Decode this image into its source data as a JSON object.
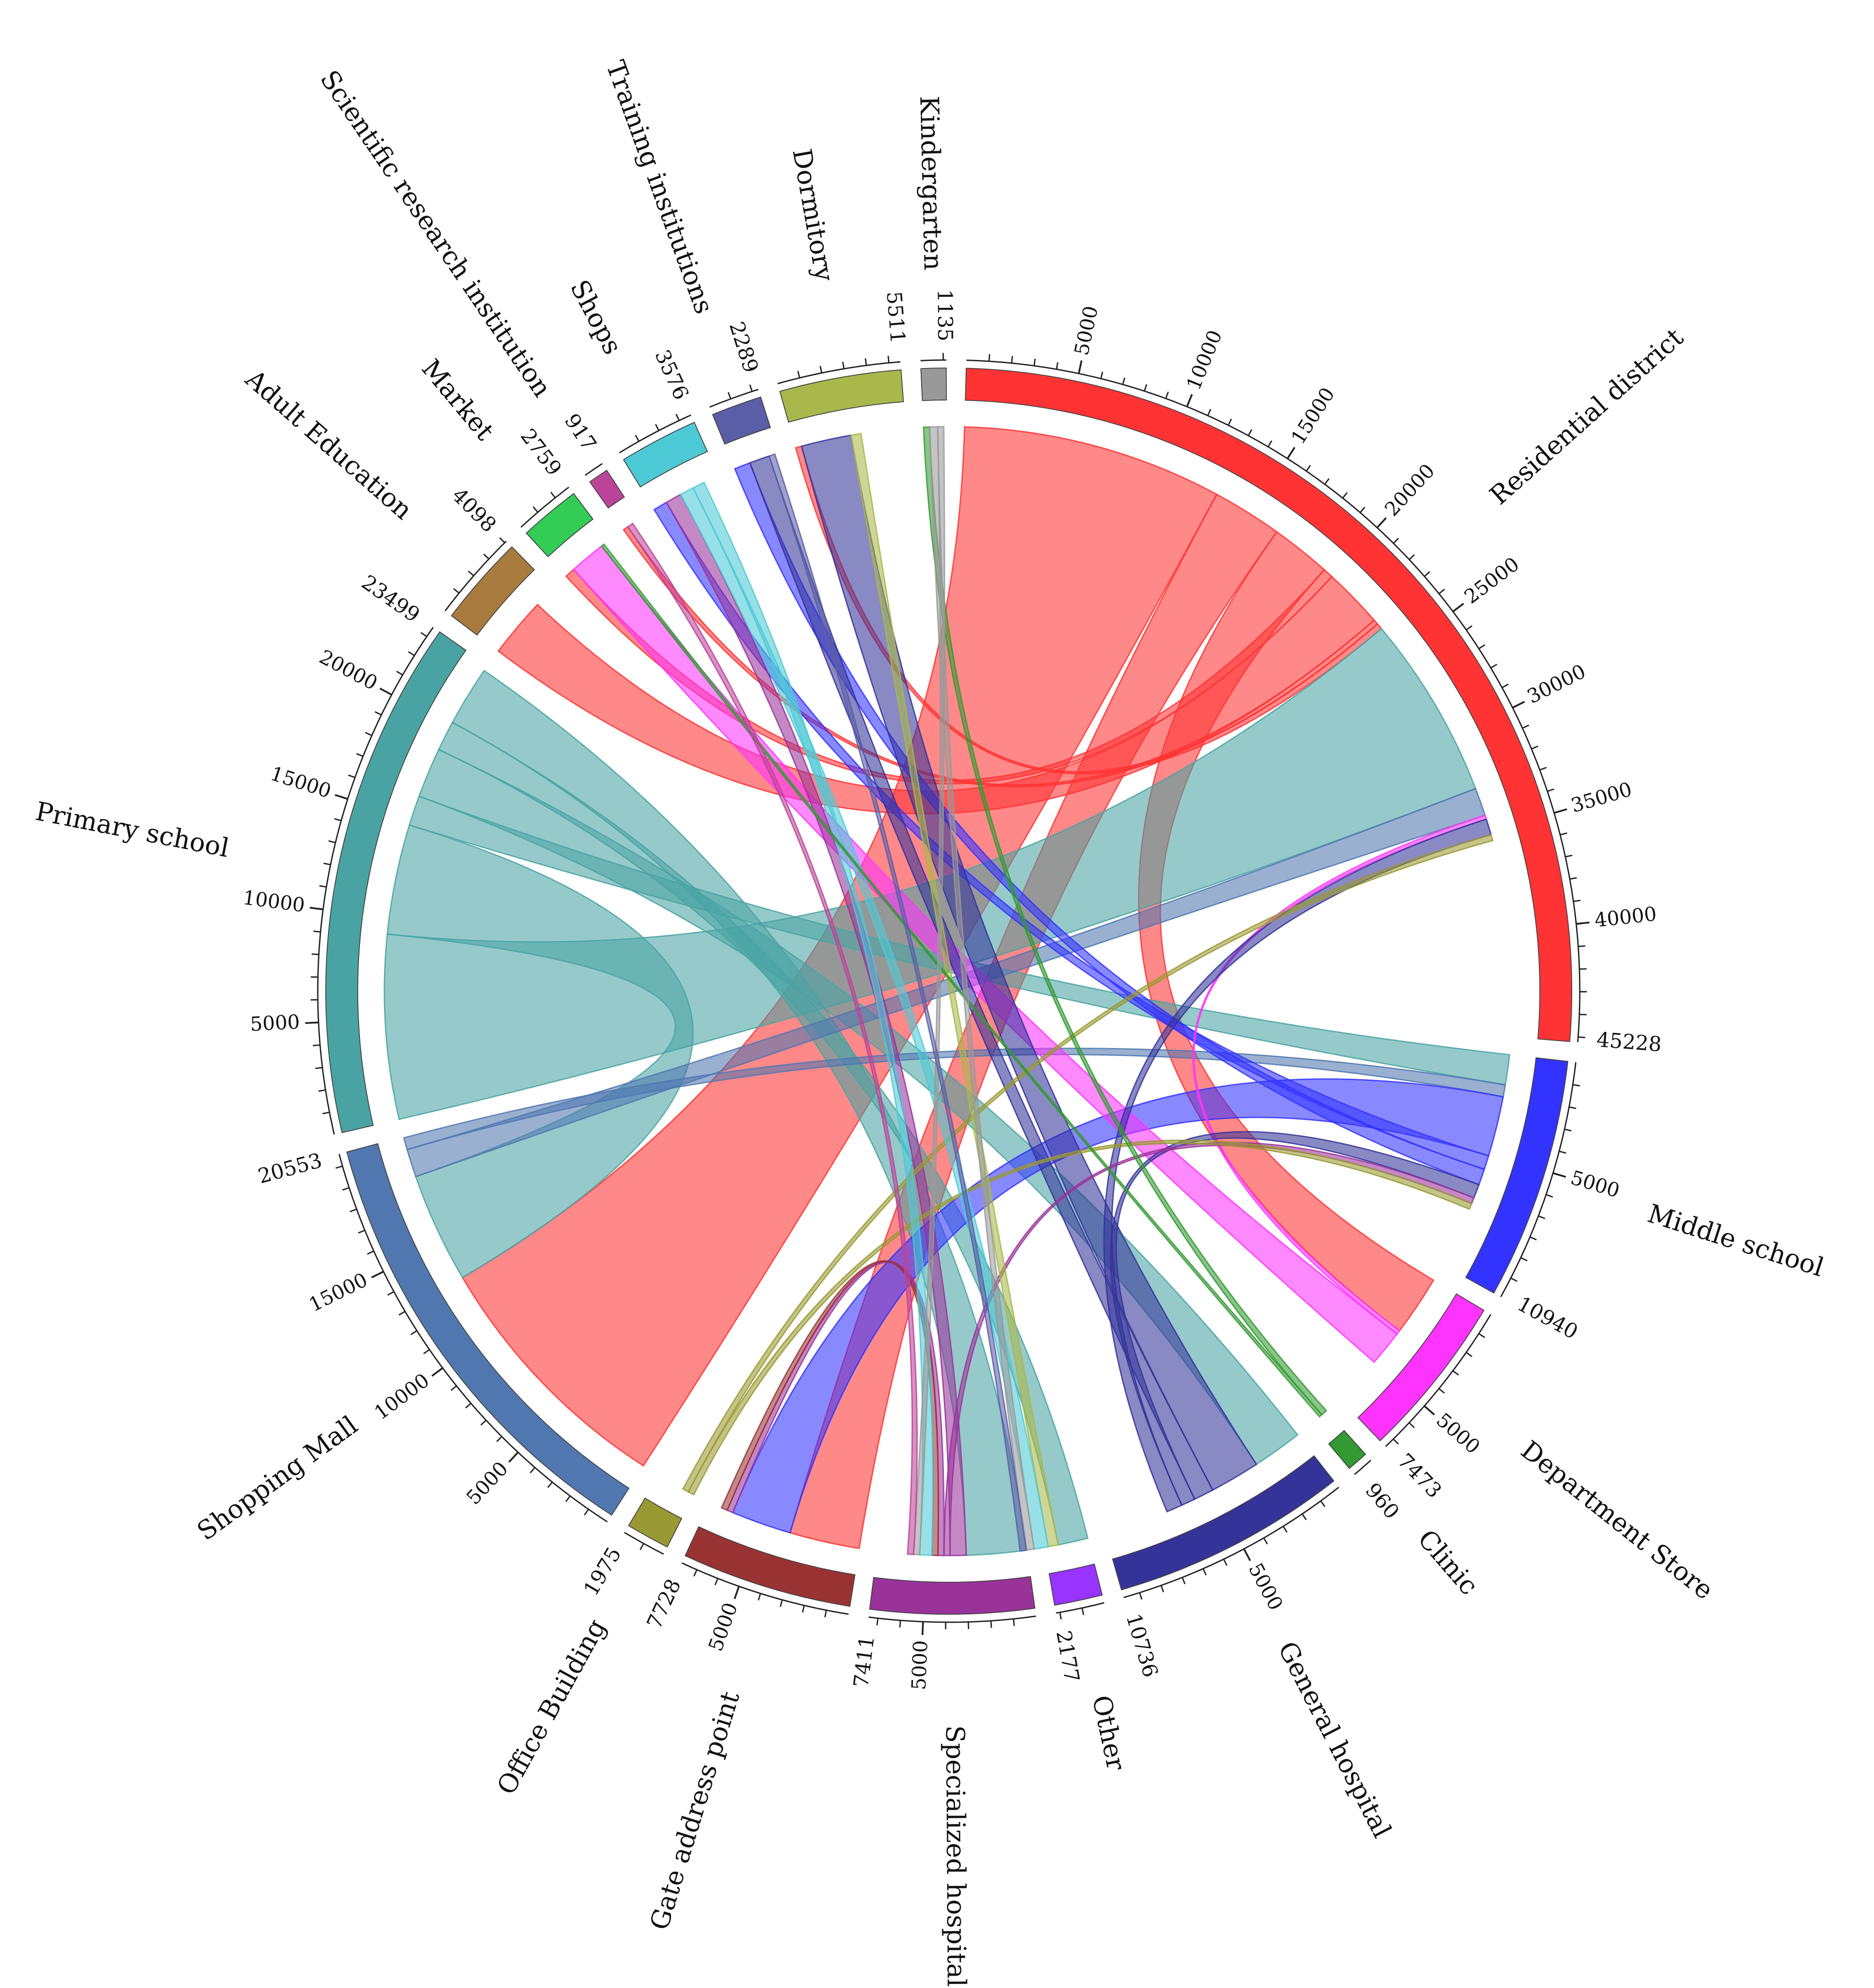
{
  "chart_data": {
    "type": "chord",
    "title": "",
    "segments": [
      {
        "name": "Residential district",
        "total": 45228,
        "color": "#ff3333",
        "ticks": [
          5000,
          10000,
          15000,
          20000,
          25000,
          30000,
          35000,
          40000
        ],
        "label_side": "right"
      },
      {
        "name": "Middle school",
        "total": 10940,
        "color": "#3333ff",
        "ticks": [
          5000
        ],
        "label_side": "right"
      },
      {
        "name": "Department Store",
        "total": 7473,
        "color": "#ff33ff",
        "ticks": [
          5000
        ],
        "label_side": "right"
      },
      {
        "name": "Clinic",
        "total": 960,
        "color": "#339933",
        "ticks": [],
        "label_side": "right"
      },
      {
        "name": "General hospital",
        "total": 10736,
        "color": "#333399",
        "ticks": [
          5000
        ],
        "label_side": "right"
      },
      {
        "name": "Other",
        "total": 2177,
        "color": "#9933ff",
        "ticks": [],
        "label_side": "right"
      },
      {
        "name": "Specialized hospital",
        "total": 7411,
        "color": "#993399",
        "ticks": [
          5000
        ],
        "label_side": "right"
      },
      {
        "name": "Gate address point",
        "total": 7728,
        "color": "#993333",
        "ticks": [
          5000
        ],
        "label_side": "left"
      },
      {
        "name": "Office Building",
        "total": 1975,
        "color": "#999933",
        "ticks": [],
        "label_side": "left"
      },
      {
        "name": "Shopping Mall",
        "total": 20553,
        "color": "#5077b0",
        "ticks": [
          5000,
          10000,
          15000
        ],
        "label_side": "left"
      },
      {
        "name": "Primary school",
        "total": 23499,
        "color": "#4aa3a3",
        "ticks": [
          5000,
          10000,
          15000,
          20000
        ],
        "label_side": "left"
      },
      {
        "name": "Adult Education",
        "total": 4098,
        "color": "#a87a3e",
        "ticks": [],
        "label_side": "left"
      },
      {
        "name": "Market",
        "total": 2759,
        "color": "#33cc55",
        "ticks": [],
        "label_side": "left"
      },
      {
        "name": "Scientific research institution",
        "total": 917,
        "color": "#bb4499",
        "ticks": [],
        "label_side": "left"
      },
      {
        "name": "Shops",
        "total": 3576,
        "color": "#4dc9d6",
        "ticks": [],
        "label_side": "left"
      },
      {
        "name": "Training institutions",
        "total": 2289,
        "color": "#5a5ea6",
        "ticks": [],
        "label_side": "left"
      },
      {
        "name": "Dormitory",
        "total": 5511,
        "color": "#a8b84a",
        "ticks": [],
        "label_side": "left"
      },
      {
        "name": "Kindergarten",
        "total": 1135,
        "color": "#999999",
        "ticks": [],
        "label_side": "left"
      }
    ],
    "flows": [
      {
        "source": "Residential district",
        "target": "Shopping Mall",
        "value": 13000
      },
      {
        "source": "Residential district",
        "target": "Gate address point",
        "value": 3500
      },
      {
        "source": "Residential district",
        "target": "Department Store",
        "value": 3000
      },
      {
        "source": "Residential district",
        "target": "Market",
        "value": 500
      },
      {
        "source": "Residential district",
        "target": "Adult Education",
        "value": 3000
      },
      {
        "source": "Residential district",
        "target": "Scientific research institution",
        "value": 250
      },
      {
        "source": "Residential district",
        "target": "Dormitory",
        "value": 300
      },
      {
        "source": "Primary school",
        "target": "Residential district",
        "value": 9200
      },
      {
        "source": "Primary school",
        "target": "Shopping Mall",
        "value": 5500
      },
      {
        "source": "Primary school",
        "target": "Middle school",
        "value": 1500
      },
      {
        "source": "Primary school",
        "target": "General hospital",
        "value": 2500
      },
      {
        "source": "Primary school",
        "target": "Other",
        "value": 1500
      },
      {
        "source": "Primary school",
        "target": "Specialized hospital",
        "value": 3000
      },
      {
        "source": "Shopping Mall",
        "target": "Residential district",
        "value": 1400
      },
      {
        "source": "Shopping Mall",
        "target": "Middle school",
        "value": 600
      },
      {
        "source": "Middle school",
        "target": "Gate address point",
        "value": 3000
      },
      {
        "source": "Middle school",
        "target": "Shops",
        "value": 700
      },
      {
        "source": "Middle school",
        "target": "Training institutions",
        "value": 800
      },
      {
        "source": "Department Store",
        "target": "Residential district",
        "value": 200
      },
      {
        "source": "Department Store",
        "target": "Market",
        "value": 1800
      },
      {
        "source": "General hospital",
        "target": "Dormitory",
        "value": 2500
      },
      {
        "source": "General hospital",
        "target": "Training institutions",
        "value": 1000
      },
      {
        "source": "General hospital",
        "target": "Middle school",
        "value": 700
      },
      {
        "source": "General hospital",
        "target": "Residential district",
        "value": 800
      },
      {
        "source": "Specialized hospital",
        "target": "Shops",
        "value": 800
      },
      {
        "source": "Specialized hospital",
        "target": "Middle school",
        "value": 300
      },
      {
        "source": "Specialized hospital",
        "target": "Gate address point",
        "value": 300
      },
      {
        "source": "Gate address point",
        "target": "Specialized hospital",
        "value": 300
      },
      {
        "source": "Office Building",
        "target": "Middle school",
        "value": 300
      },
      {
        "source": "Office Building",
        "target": "Residential district",
        "value": 300
      },
      {
        "source": "Dormitory",
        "target": "Other",
        "value": 500
      },
      {
        "source": "Shops",
        "target": "Other",
        "value": 700
      },
      {
        "source": "Shops",
        "target": "Specialized hospital",
        "value": 600
      },
      {
        "source": "Clinic",
        "target": "Kindergarten",
        "value": 300
      },
      {
        "source": "Clinic",
        "target": "Market",
        "value": 150
      },
      {
        "source": "Kindergarten",
        "target": "Other",
        "value": 400
      },
      {
        "source": "Kindergarten",
        "target": "Specialized hospital",
        "value": 300
      },
      {
        "source": "Training institutions",
        "target": "Other",
        "value": 300
      },
      {
        "source": "Scientific research institution",
        "target": "Specialized hospital",
        "value": 300
      }
    ]
  }
}
